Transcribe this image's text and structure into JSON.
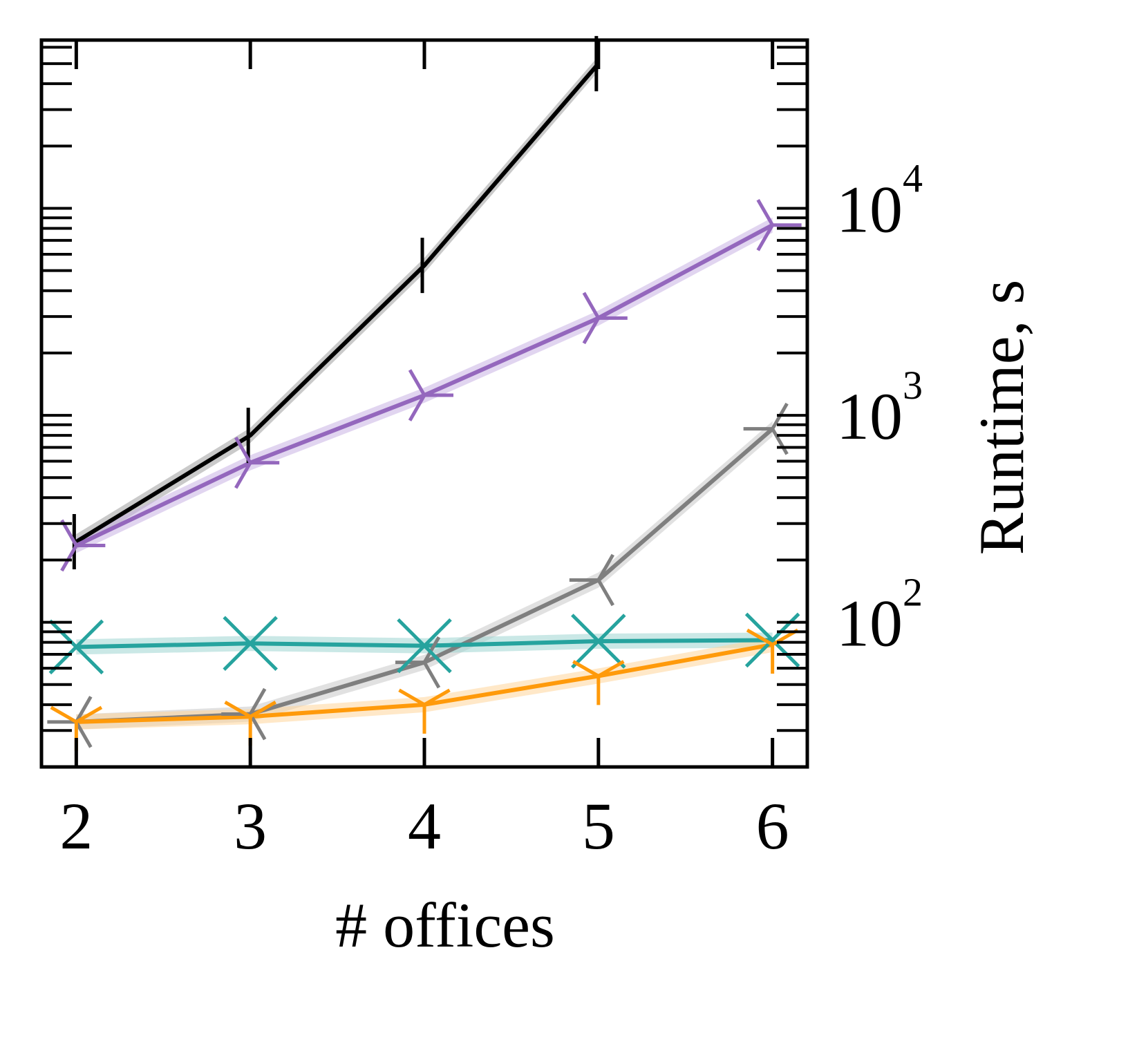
{
  "chart_data": {
    "type": "line",
    "xlabel": "# offices",
    "ylabel": "Runtime, s",
    "yscale": "log",
    "y_axis_side": "right",
    "ylim": [
      20,
      65000
    ],
    "xlim": [
      1.8,
      6.2
    ],
    "x": [
      2,
      3,
      4,
      5,
      6
    ],
    "x_tick_labels": [
      "2",
      "3",
      "4",
      "5",
      "6"
    ],
    "y_tick_labels": [
      {
        "base": "10",
        "exp": "2",
        "value": 100
      },
      {
        "base": "10",
        "exp": "3",
        "value": 1000
      },
      {
        "base": "10",
        "exp": "4",
        "value": 10000
      }
    ],
    "grid": false,
    "series": [
      {
        "color": "#000000",
        "marker": "vline",
        "band": "#9e9e9e",
        "values": [
          245,
          800,
          5300,
          50000,
          null
        ]
      },
      {
        "color": "#9467bd",
        "marker": "tri_right",
        "band": "#c9b3e3",
        "values": [
          235,
          590,
          1250,
          2950,
          8300
        ]
      },
      {
        "color": "#7f7f7f",
        "marker": "tri_left",
        "band": "#c8c8c8",
        "values": [
          33,
          36,
          64,
          160,
          860
        ]
      },
      {
        "color": "#26a39e",
        "marker": "x",
        "band": "#9fd6d2",
        "values": [
          76,
          79,
          77,
          81,
          82
        ]
      },
      {
        "color": "#ff9a0a",
        "marker": "tri_down",
        "band": "#ffd59a",
        "values": [
          33,
          35,
          40,
          55,
          78
        ]
      }
    ]
  }
}
